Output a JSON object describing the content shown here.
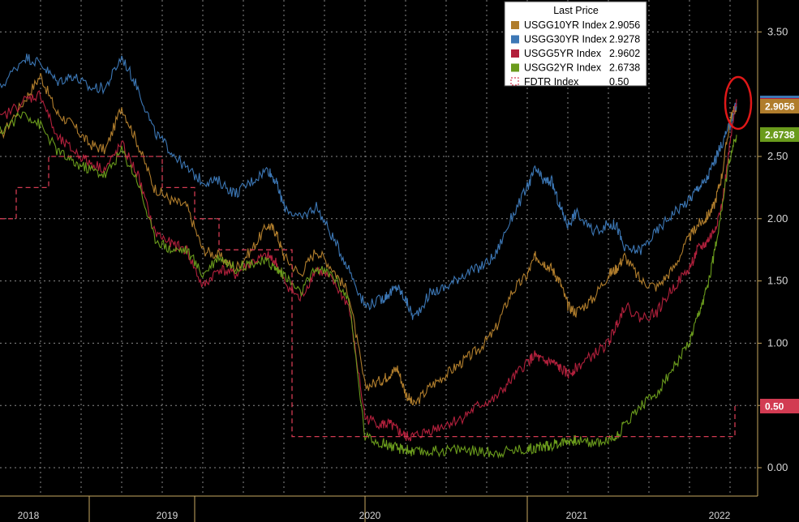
{
  "chart_data": {
    "type": "line",
    "title": "",
    "xlabel": "",
    "ylabel": "",
    "ylim": [
      -0.2,
      3.75
    ],
    "y_ticks": [
      "0.00",
      "0.50",
      "1.00",
      "1.50",
      "2.00",
      "2.50",
      "3.50"
    ],
    "x_year_labels": [
      "2018",
      "2019",
      "2020",
      "2021",
      "2022"
    ],
    "grid": true,
    "legend_position": "top-right",
    "legend_title": "Last Price",
    "series": [
      {
        "name": "USGG10YR Index",
        "last": "2.9056",
        "color": "#b07d2c",
        "x": [
          2017.75,
          2017.9,
          2018.0,
          2018.1,
          2018.2,
          2018.3,
          2018.4,
          2018.5,
          2018.6,
          2018.7,
          2018.8,
          2018.9,
          2019.0,
          2019.1,
          2019.2,
          2019.3,
          2019.4,
          2019.45,
          2019.5,
          2019.6,
          2019.7,
          2019.8,
          2019.9,
          2020.0,
          2020.1,
          2020.15,
          2020.2,
          2020.25,
          2020.3,
          2020.4,
          2020.5,
          2020.6,
          2020.7,
          2020.8,
          2020.9,
          2021.0,
          2021.05,
          2021.1,
          2021.15,
          2021.2,
          2021.25,
          2021.3,
          2021.4,
          2021.5,
          2021.55,
          2021.6,
          2021.7,
          2021.8,
          2021.9,
          2022.0,
          2022.05,
          2022.1,
          2022.15,
          2022.2,
          2022.25,
          2022.29
        ],
        "y": [
          2.65,
          2.95,
          3.15,
          2.85,
          2.75,
          2.6,
          2.55,
          2.9,
          2.6,
          2.25,
          2.15,
          2.1,
          1.75,
          1.7,
          1.6,
          1.75,
          1.95,
          1.9,
          1.7,
          1.55,
          1.75,
          1.6,
          1.4,
          0.65,
          0.7,
          0.75,
          0.8,
          0.6,
          0.5,
          0.65,
          0.75,
          0.85,
          0.95,
          1.1,
          1.4,
          1.55,
          1.7,
          1.65,
          1.6,
          1.5,
          1.3,
          1.25,
          1.35,
          1.55,
          1.6,
          1.7,
          1.5,
          1.45,
          1.6,
          1.85,
          1.95,
          2.0,
          2.1,
          2.35,
          2.8,
          2.9056
        ]
      },
      {
        "name": "USGG30YR Index",
        "last": "2.9278",
        "color": "#3c77b5",
        "x": [
          2017.75,
          2017.9,
          2018.0,
          2018.1,
          2018.2,
          2018.3,
          2018.4,
          2018.5,
          2018.6,
          2018.7,
          2018.8,
          2018.9,
          2019.0,
          2019.1,
          2019.2,
          2019.3,
          2019.4,
          2019.45,
          2019.5,
          2019.6,
          2019.7,
          2019.8,
          2019.9,
          2020.0,
          2020.1,
          2020.15,
          2020.2,
          2020.25,
          2020.3,
          2020.4,
          2020.5,
          2020.6,
          2020.7,
          2020.8,
          2020.9,
          2021.0,
          2021.05,
          2021.1,
          2021.15,
          2021.2,
          2021.25,
          2021.3,
          2021.4,
          2021.5,
          2021.55,
          2021.6,
          2021.7,
          2021.8,
          2021.9,
          2022.0,
          2022.05,
          2022.1,
          2022.15,
          2022.2,
          2022.25,
          2022.29
        ],
        "y": [
          3.05,
          3.3,
          3.25,
          3.1,
          3.15,
          3.05,
          3.05,
          3.3,
          3.05,
          2.7,
          2.55,
          2.4,
          2.3,
          2.3,
          2.2,
          2.3,
          2.4,
          2.3,
          2.1,
          2.0,
          2.1,
          1.85,
          1.6,
          1.3,
          1.35,
          1.4,
          1.45,
          1.35,
          1.2,
          1.4,
          1.45,
          1.55,
          1.6,
          1.7,
          2.0,
          2.25,
          2.4,
          2.3,
          2.3,
          2.1,
          1.95,
          2.05,
          1.9,
          1.95,
          1.95,
          1.75,
          1.75,
          1.9,
          2.05,
          2.15,
          2.25,
          2.3,
          2.45,
          2.6,
          2.75,
          2.9278
        ]
      },
      {
        "name": "USGG5YR Index",
        "last": "2.9602",
        "color": "#b2203c",
        "x": [
          2017.75,
          2017.9,
          2018.0,
          2018.1,
          2018.2,
          2018.3,
          2018.4,
          2018.5,
          2018.6,
          2018.7,
          2018.8,
          2018.9,
          2019.0,
          2019.1,
          2019.2,
          2019.3,
          2019.4,
          2019.45,
          2019.5,
          2019.6,
          2019.7,
          2019.8,
          2019.9,
          2020.0,
          2020.1,
          2020.15,
          2020.2,
          2020.25,
          2020.3,
          2020.4,
          2020.5,
          2020.6,
          2020.7,
          2020.8,
          2020.9,
          2021.0,
          2021.05,
          2021.1,
          2021.15,
          2021.2,
          2021.25,
          2021.3,
          2021.4,
          2021.5,
          2021.55,
          2021.6,
          2021.7,
          2021.8,
          2021.9,
          2022.0,
          2022.05,
          2022.1,
          2022.15,
          2022.2,
          2022.25,
          2022.29
        ],
        "y": [
          2.8,
          2.95,
          3.0,
          2.65,
          2.55,
          2.45,
          2.4,
          2.6,
          2.35,
          1.9,
          1.8,
          1.75,
          1.45,
          1.6,
          1.55,
          1.65,
          1.7,
          1.65,
          1.5,
          1.35,
          1.6,
          1.5,
          1.3,
          0.4,
          0.35,
          0.35,
          0.3,
          0.25,
          0.25,
          0.3,
          0.35,
          0.4,
          0.5,
          0.55,
          0.7,
          0.85,
          0.9,
          0.85,
          0.85,
          0.8,
          0.75,
          0.8,
          0.9,
          1.0,
          1.15,
          1.3,
          1.2,
          1.25,
          1.45,
          1.6,
          1.75,
          1.8,
          1.9,
          2.1,
          2.6,
          2.9602
        ]
      },
      {
        "name": "USGG2YR Index",
        "last": "2.6738",
        "color": "#6a9b1c",
        "x": [
          2017.75,
          2017.9,
          2018.0,
          2018.1,
          2018.2,
          2018.3,
          2018.4,
          2018.5,
          2018.6,
          2018.7,
          2018.8,
          2018.9,
          2019.0,
          2019.1,
          2019.2,
          2019.3,
          2019.4,
          2019.45,
          2019.5,
          2019.6,
          2019.7,
          2019.8,
          2019.9,
          2020.0,
          2020.1,
          2020.15,
          2020.2,
          2020.25,
          2020.3,
          2020.4,
          2020.5,
          2020.6,
          2020.7,
          2020.8,
          2020.9,
          2021.0,
          2021.05,
          2021.1,
          2021.15,
          2021.2,
          2021.25,
          2021.3,
          2021.4,
          2021.5,
          2021.55,
          2021.6,
          2021.7,
          2021.8,
          2021.9,
          2022.0,
          2022.05,
          2022.1,
          2022.15,
          2022.2,
          2022.25,
          2022.29
        ],
        "y": [
          2.7,
          2.85,
          2.75,
          2.55,
          2.45,
          2.4,
          2.35,
          2.55,
          2.3,
          1.85,
          1.75,
          1.75,
          1.55,
          1.7,
          1.6,
          1.65,
          1.65,
          1.6,
          1.55,
          1.4,
          1.6,
          1.55,
          1.35,
          0.25,
          0.2,
          0.18,
          0.15,
          0.15,
          0.12,
          0.13,
          0.14,
          0.15,
          0.13,
          0.12,
          0.14,
          0.15,
          0.16,
          0.17,
          0.18,
          0.2,
          0.22,
          0.22,
          0.2,
          0.22,
          0.25,
          0.35,
          0.5,
          0.6,
          0.8,
          1.0,
          1.2,
          1.4,
          1.7,
          2.1,
          2.5,
          2.6738
        ]
      },
      {
        "name": "FDTR Index",
        "last": "0.50",
        "color": "#d23b52",
        "dashed": true,
        "x": [
          2017.75,
          2017.85,
          2017.85,
          2018.05,
          2018.05,
          2018.75,
          2018.75,
          2018.95,
          2018.95,
          2019.1,
          2019.1,
          2019.3,
          2019.3,
          2019.4,
          2019.4,
          2019.55,
          2019.55,
          2020.7,
          2020.7,
          2022.28,
          2022.28,
          2022.3
        ],
        "y": [
          2.0,
          2.0,
          2.25,
          2.25,
          2.5,
          2.5,
          2.25,
          2.25,
          2.0,
          2.0,
          1.75,
          1.75,
          1.75,
          1.75,
          1.75,
          1.75,
          0.25,
          0.25,
          0.25,
          0.25,
          0.5,
          0.5
        ]
      }
    ]
  }
}
